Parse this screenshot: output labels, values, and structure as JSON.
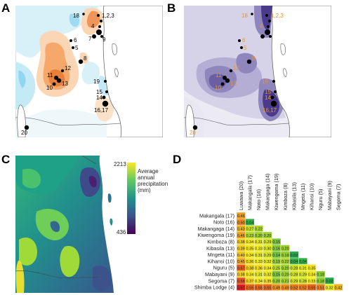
{
  "panels": {
    "a": {
      "label": "A"
    },
    "b": {
      "label": "B"
    },
    "c": {
      "label": "C"
    },
    "d": {
      "label": "D"
    }
  },
  "sites_a": [
    {
      "label": "18"
    },
    {
      "label": "1,2,3"
    },
    {
      "label": "4"
    },
    {
      "label": "7"
    },
    {
      "label": "9"
    },
    {
      "label": "6"
    },
    {
      "label": "5"
    },
    {
      "label": "8"
    },
    {
      "label": "12"
    },
    {
      "label": "11"
    },
    {
      "label": "10"
    },
    {
      "label": "13"
    },
    {
      "label": "19"
    },
    {
      "label": "15"
    },
    {
      "label": "14"
    },
    {
      "label": "16,17"
    },
    {
      "label": "20"
    }
  ],
  "sites_b": [
    {
      "label": "18"
    },
    {
      "label": "1,2,3"
    },
    {
      "label": "4"
    },
    {
      "label": "6"
    },
    {
      "label": "5"
    },
    {
      "label": "8"
    },
    {
      "label": "12"
    },
    {
      "label": "11"
    },
    {
      "label": "10"
    },
    {
      "label": "13"
    },
    {
      "label": "19"
    },
    {
      "label": "15"
    },
    {
      "label": "14"
    },
    {
      "label": "16,17"
    },
    {
      "label": "20"
    }
  ],
  "legend_c": {
    "max": "2213",
    "min": "436",
    "title_lines": [
      "Average",
      "annual",
      "precipitation",
      "(mm)"
    ],
    "colors": [
      "#fde725",
      "#5ec962",
      "#21918c",
      "#3b528b",
      "#440154"
    ]
  },
  "chart_data": {
    "type": "heatmap",
    "columns": [
      "Luwawa (20)",
      "Makangala (17)",
      "Noto (16)",
      "Makangaga (14)",
      "Kiwengoma (19)",
      "Kimboza (8)",
      "Kibasila (13)",
      "Mngeta (11)",
      "Kihansi (10)",
      "Nguru (5)",
      "Mabayani (9)",
      "Segoma (7)"
    ],
    "rows": [
      {
        "name": "Makangala (17)",
        "values": [
          "0.46"
        ]
      },
      {
        "name": "Noto (16)",
        "values": [
          "0.50",
          "0.04"
        ]
      },
      {
        "name": "Makangaga (14)",
        "values": [
          "0.43",
          "0.27",
          "0.22"
        ]
      },
      {
        "name": "Kiwengoma (19)",
        "values": [
          "0.46",
          "0.23",
          "0.20",
          "0.20"
        ]
      },
      {
        "name": "Kimboza (8)",
        "values": [
          "0.38",
          "0.34",
          "0.31",
          "0.29",
          "0.15"
        ]
      },
      {
        "name": "Kibasila (13)",
        "values": [
          "0.39",
          "0.35",
          "0.33",
          "0.30",
          "0.16",
          "0.20"
        ]
      },
      {
        "name": "Mngeta (11)",
        "values": [
          "0.40",
          "0.34",
          "0.31",
          "0.29",
          "0.14",
          "0.19",
          "0.02"
        ]
      },
      {
        "name": "Kihansi (10)",
        "values": [
          "0.45",
          "0.36",
          "0.33",
          "0.32",
          "0.19",
          "0.22",
          "0.04",
          "0.04"
        ]
      },
      {
        "name": "Nguru (5)",
        "values": [
          "0.57",
          "0.38",
          "0.36",
          "0.34",
          "0.25",
          "0.20",
          "0.28",
          "0.31",
          "0.35"
        ]
      },
      {
        "name": "Mabayani (9)",
        "values": [
          "0.38",
          "0.34",
          "0.31",
          "0.32",
          "0.15",
          "0.20",
          "0.28",
          "0.29",
          "0.34",
          "0.18"
        ]
      },
      {
        "name": "Segoma (7)",
        "values": [
          "0.58",
          "0.37",
          "0.34",
          "0.35",
          "0.20",
          "0.21",
          "0.29",
          "0.28",
          "0.33",
          "0.18",
          "0.02"
        ]
      },
      {
        "name": "Shimba Lodge (4)",
        "values": [
          "0.67",
          "0.55",
          "0.55",
          "0.55",
          "0.49",
          "0.49",
          "0.52",
          "0.52",
          "0.55",
          "0.51",
          "0.32",
          "0.42"
        ]
      }
    ],
    "color_scale": {
      "low": "#17a64c",
      "mid": "#f4ec1c",
      "high": "#e01d1d"
    }
  }
}
